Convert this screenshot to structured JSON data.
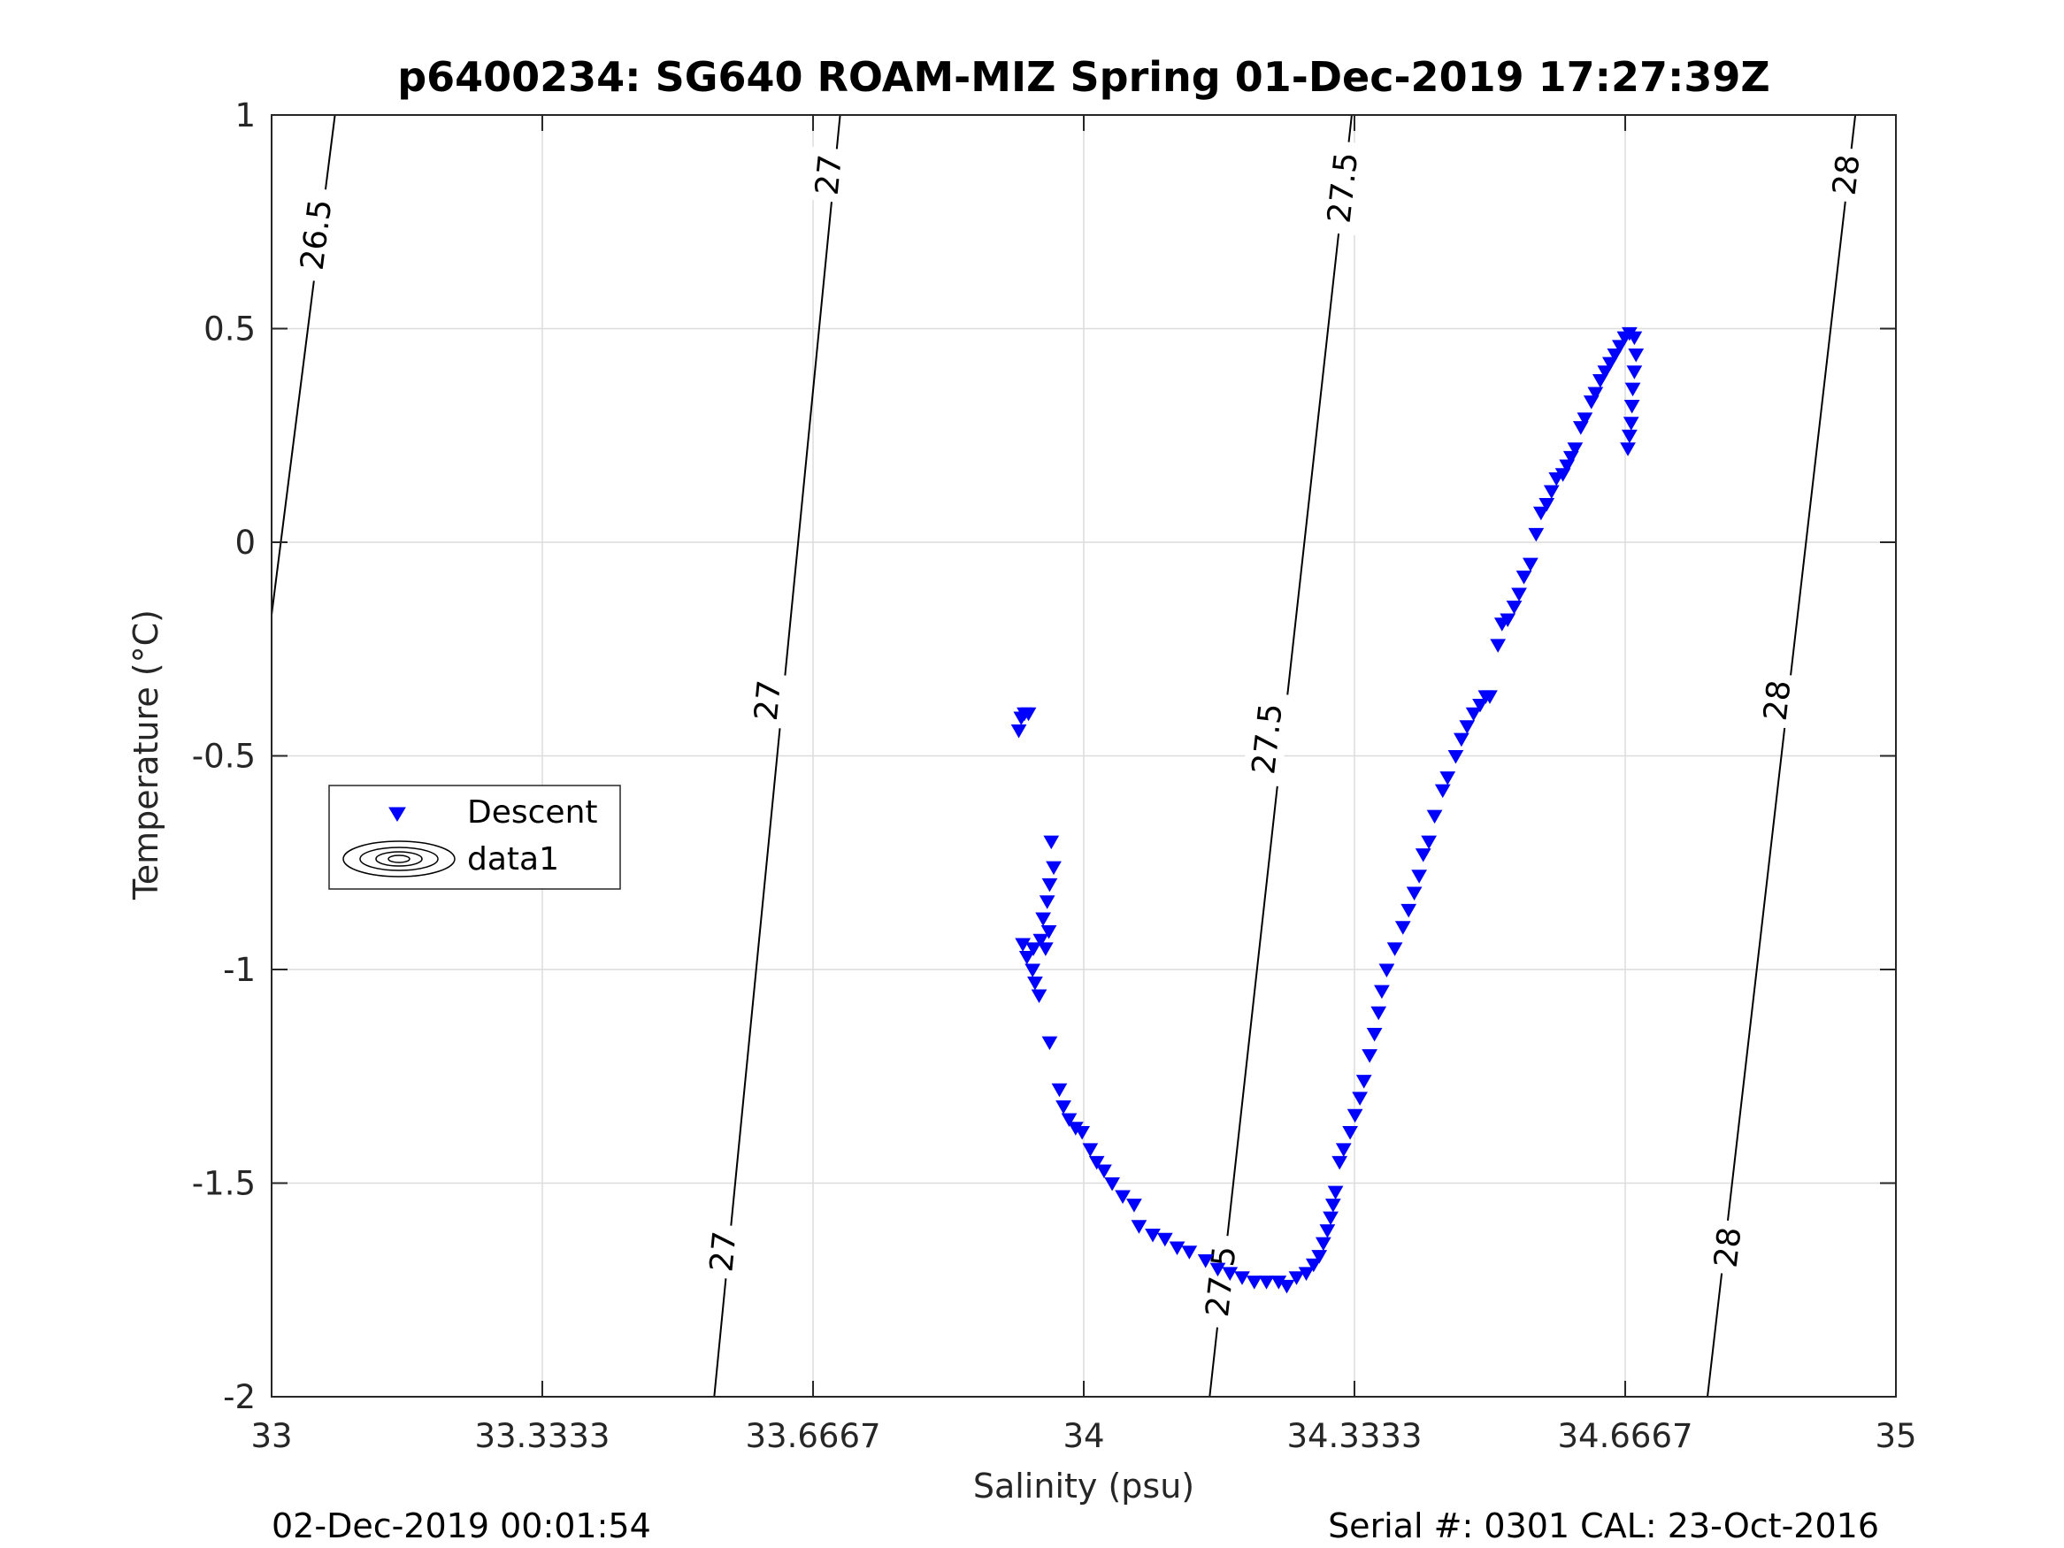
{
  "chart_data": {
    "type": "scatter",
    "title": "p6400234: SG640 ROAM-MIZ Spring 01-Dec-2019 17:27:39Z",
    "xlabel": "Salinity (psu)",
    "ylabel": "Temperature (°C)",
    "xlim": [
      33,
      35
    ],
    "ylim": [
      -2,
      1
    ],
    "x_ticks": [
      33,
      33.3333,
      33.6667,
      34,
      34.3333,
      34.6667,
      35
    ],
    "x_tick_labels": [
      "33",
      "33.3333",
      "33.6667",
      "34",
      "34.3333",
      "34.6667",
      "35"
    ],
    "y_ticks": [
      -2,
      -1.5,
      -1,
      -0.5,
      0,
      0.5,
      1
    ],
    "y_tick_labels": [
      "-2",
      "-1.5",
      "-1",
      "-0.5",
      "0",
      "0.5",
      "1"
    ],
    "grid": true,
    "legend_position": "left-middle",
    "colors": {
      "descent": "#0000ff",
      "contour": "#000000",
      "grid": "#dcdcdc"
    },
    "series": [
      {
        "name": "Descent",
        "marker": "triangle-down",
        "color": "#0000ff",
        "points": [
          [
            33.92,
            -0.44
          ],
          [
            33.923,
            -0.41
          ],
          [
            33.927,
            -0.4
          ],
          [
            33.932,
            -0.4
          ],
          [
            33.96,
            -0.7
          ],
          [
            33.963,
            -0.76
          ],
          [
            33.958,
            -0.8
          ],
          [
            33.955,
            -0.84
          ],
          [
            33.95,
            -0.88
          ],
          [
            33.957,
            -0.91
          ],
          [
            33.953,
            -0.95
          ],
          [
            33.947,
            -0.93
          ],
          [
            33.938,
            -0.95
          ],
          [
            33.925,
            -0.94
          ],
          [
            33.93,
            -0.97
          ],
          [
            33.937,
            -1.0
          ],
          [
            33.94,
            -1.03
          ],
          [
            33.945,
            -1.06
          ],
          [
            33.958,
            -1.17
          ],
          [
            33.97,
            -1.28
          ],
          [
            33.975,
            -1.32
          ],
          [
            33.982,
            -1.35
          ],
          [
            33.99,
            -1.37
          ],
          [
            33.998,
            -1.38
          ],
          [
            34.008,
            -1.42
          ],
          [
            34.016,
            -1.45
          ],
          [
            34.025,
            -1.47
          ],
          [
            34.035,
            -1.5
          ],
          [
            34.048,
            -1.53
          ],
          [
            34.062,
            -1.55
          ],
          [
            34.068,
            -1.6
          ],
          [
            34.085,
            -1.62
          ],
          [
            34.1,
            -1.63
          ],
          [
            34.115,
            -1.65
          ],
          [
            34.13,
            -1.66
          ],
          [
            34.15,
            -1.68
          ],
          [
            34.165,
            -1.7
          ],
          [
            34.18,
            -1.71
          ],
          [
            34.195,
            -1.72
          ],
          [
            34.21,
            -1.73
          ],
          [
            34.225,
            -1.73
          ],
          [
            34.24,
            -1.73
          ],
          [
            34.25,
            -1.74
          ],
          [
            34.262,
            -1.72
          ],
          [
            34.274,
            -1.71
          ],
          [
            34.283,
            -1.69
          ],
          [
            34.29,
            -1.67
          ],
          [
            34.295,
            -1.64
          ],
          [
            34.3,
            -1.61
          ],
          [
            34.304,
            -1.58
          ],
          [
            34.307,
            -1.55
          ],
          [
            34.31,
            -1.52
          ],
          [
            34.315,
            -1.45
          ],
          [
            34.32,
            -1.42
          ],
          [
            34.328,
            -1.38
          ],
          [
            34.334,
            -1.34
          ],
          [
            34.34,
            -1.3
          ],
          [
            34.345,
            -1.26
          ],
          [
            34.352,
            -1.2
          ],
          [
            34.358,
            -1.15
          ],
          [
            34.363,
            -1.1
          ],
          [
            34.367,
            -1.05
          ],
          [
            34.373,
            -1.0
          ],
          [
            34.383,
            -0.95
          ],
          [
            34.393,
            -0.9
          ],
          [
            34.4,
            -0.86
          ],
          [
            34.407,
            -0.82
          ],
          [
            34.413,
            -0.78
          ],
          [
            34.418,
            -0.73
          ],
          [
            34.425,
            -0.7
          ],
          [
            34.432,
            -0.64
          ],
          [
            34.442,
            -0.58
          ],
          [
            34.448,
            -0.55
          ],
          [
            34.458,
            -0.5
          ],
          [
            34.465,
            -0.46
          ],
          [
            34.472,
            -0.43
          ],
          [
            34.48,
            -0.4
          ],
          [
            34.488,
            -0.38
          ],
          [
            34.495,
            -0.36
          ],
          [
            34.5,
            -0.36
          ],
          [
            34.51,
            -0.24
          ],
          [
            34.515,
            -0.19
          ],
          [
            34.522,
            -0.18
          ],
          [
            34.53,
            -0.15
          ],
          [
            34.536,
            -0.12
          ],
          [
            34.542,
            -0.08
          ],
          [
            34.55,
            -0.05
          ],
          [
            34.557,
            0.02
          ],
          [
            34.563,
            0.07
          ],
          [
            34.57,
            0.09
          ],
          [
            34.576,
            0.12
          ],
          [
            34.582,
            0.15
          ],
          [
            34.59,
            0.16
          ],
          [
            34.595,
            0.18
          ],
          [
            34.6,
            0.2
          ],
          [
            34.605,
            0.22
          ],
          [
            34.612,
            0.27
          ],
          [
            34.617,
            0.29
          ],
          [
            34.625,
            0.33
          ],
          [
            34.63,
            0.35
          ],
          [
            34.636,
            0.38
          ],
          [
            34.642,
            0.4
          ],
          [
            34.648,
            0.42
          ],
          [
            34.654,
            0.44
          ],
          [
            34.66,
            0.46
          ],
          [
            34.666,
            0.48
          ],
          [
            34.672,
            0.49
          ],
          [
            34.678,
            0.48
          ],
          [
            34.68,
            0.44
          ],
          [
            34.678,
            0.4
          ],
          [
            34.676,
            0.36
          ],
          [
            34.675,
            0.32
          ],
          [
            34.674,
            0.28
          ],
          [
            34.672,
            0.25
          ],
          [
            34.67,
            0.22
          ]
        ]
      },
      {
        "name": "data1",
        "marker": "contour",
        "color": "#000000",
        "contours": [
          {
            "level": "26.5",
            "points": [
              [
                33.078,
                1.0
              ],
              [
                33.0,
                -0.17
              ]
            ]
          },
          {
            "level": "27",
            "points": [
              [
                33.7,
                1.0
              ],
              [
                33.545,
                -2.0
              ]
            ]
          },
          {
            "level": "27.5",
            "points": [
              [
                34.33,
                1.0
              ],
              [
                34.155,
                -2.0
              ]
            ]
          },
          {
            "level": "28",
            "points": [
              [
                34.95,
                1.0
              ],
              [
                34.768,
                -2.0
              ]
            ]
          }
        ],
        "contour_labels": [
          {
            "text": "26.5",
            "x": 33.054,
            "y": 0.72
          },
          {
            "text": "27",
            "x": 33.685,
            "y": 0.86
          },
          {
            "text": "27",
            "x": 33.61,
            "y": -0.37
          },
          {
            "text": "27",
            "x": 33.555,
            "y": -1.66
          },
          {
            "text": "27.5",
            "x": 34.318,
            "y": 0.83
          },
          {
            "text": "27.5",
            "x": 34.225,
            "y": -0.46
          },
          {
            "text": "27.5",
            "x": 34.168,
            "y": -1.73
          },
          {
            "text": "28",
            "x": 34.938,
            "y": 0.86
          },
          {
            "text": "28",
            "x": 34.853,
            "y": -0.37
          },
          {
            "text": "28",
            "x": 34.792,
            "y": -1.65
          }
        ]
      }
    ]
  },
  "footer": {
    "left": "02-Dec-2019 00:01:54",
    "right": "Serial #: 0301  CAL: 23-Oct-2016"
  }
}
